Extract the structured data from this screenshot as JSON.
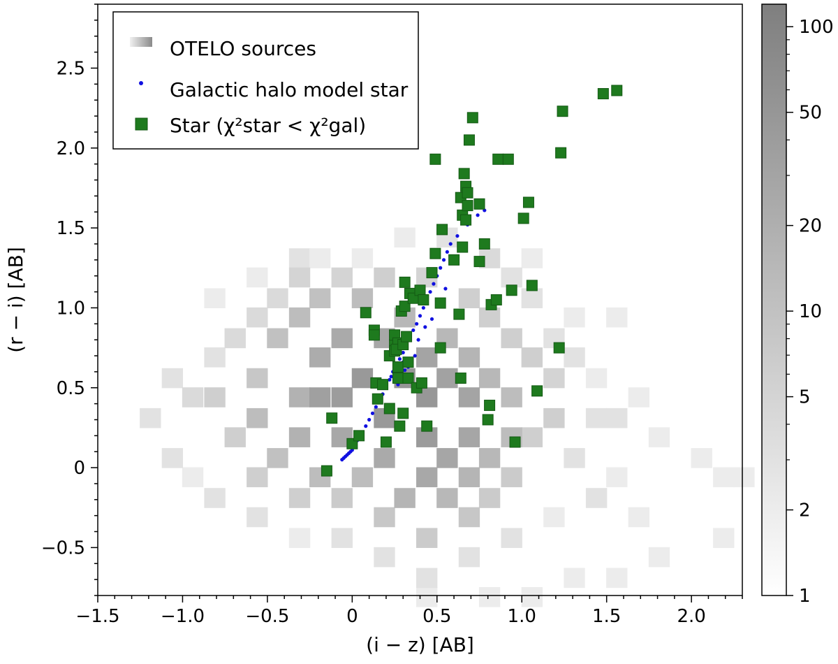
{
  "chart_data": {
    "type": "heatmap",
    "xlabel": "(i − z) [AB]",
    "ylabel": "(r − i) [AB]",
    "xlim": [
      -1.5,
      2.3
    ],
    "ylim": [
      -0.8,
      2.9
    ],
    "xticks": [
      -1.5,
      -1.0,
      -0.5,
      0,
      0.5,
      1.0,
      1.5,
      2.0
    ],
    "xtick_labels": [
      "−1.5",
      "−1.0",
      "−0.5",
      "0",
      "0.5",
      "1.0",
      "1.5",
      "2.0"
    ],
    "yticks": [
      -0.5,
      0,
      0.5,
      1.0,
      1.5,
      2.0,
      2.5
    ],
    "ytick_labels": [
      "−0.5",
      "0",
      "0.5",
      "1.0",
      "1.5",
      "2.0",
      "2.5"
    ],
    "legend": {
      "location": "upper-left",
      "entries": [
        {
          "key": "hist",
          "label": "OTELO sources"
        },
        {
          "key": "halo",
          "label": "Galactic halo model star"
        },
        {
          "key": "star",
          "label": "Star (χ²star < χ²gal)"
        }
      ]
    },
    "colorbar": {
      "scale": "log",
      "range": [
        1,
        120
      ],
      "ticks": [
        1,
        2,
        5,
        10,
        20,
        50,
        100
      ],
      "tick_labels": [
        "1",
        "2",
        "5",
        "10",
        "20",
        "50",
        "100"
      ],
      "color_low": "#ffffff",
      "color_high": "#7f7f7f"
    },
    "colors": {
      "halo": "#1010e0",
      "star": "#1e7a1e",
      "star_edge": "#145a14"
    },
    "histogram": {
      "bin_width_x": 0.125,
      "bin_height_y": 0.125,
      "cells": [
        [
          -1.44,
          0.69,
          1
        ],
        [
          -1.19,
          1.69,
          1
        ],
        [
          -1.19,
          0.56,
          1
        ],
        [
          -0.94,
          1.69,
          1
        ],
        [
          -0.69,
          1.44,
          1
        ],
        [
          -0.44,
          1.69,
          1
        ],
        [
          -0.19,
          1.44,
          1
        ],
        [
          -0.69,
          1.06,
          1
        ],
        [
          -0.94,
          0.81,
          1
        ],
        [
          -1.31,
          0.31,
          1
        ],
        [
          -1.44,
          0.31,
          1
        ],
        [
          -1.06,
          0.19,
          1
        ],
        [
          -1.31,
          0.06,
          1
        ],
        [
          -1.31,
          -0.06,
          1
        ],
        [
          -0.94,
          -0.06,
          2
        ],
        [
          -0.69,
          -0.19,
          1
        ],
        [
          -0.81,
          -0.44,
          1
        ],
        [
          -1.06,
          -0.44,
          1
        ],
        [
          -0.56,
          -0.56,
          1
        ],
        [
          -0.19,
          -0.69,
          1
        ],
        [
          -0.06,
          -0.81,
          1
        ],
        [
          1.31,
          1.19,
          1
        ],
        [
          1.56,
          1.19,
          1
        ],
        [
          1.69,
          0.94,
          1
        ],
        [
          1.81,
          1.31,
          1
        ],
        [
          1.94,
          0.94,
          1
        ],
        [
          1.94,
          0.69,
          1
        ],
        [
          2.19,
          0.69,
          1
        ],
        [
          2.06,
          0.06,
          2
        ],
        [
          2.19,
          -0.06,
          2
        ],
        [
          2.31,
          -0.06,
          2
        ],
        [
          1.94,
          -0.19,
          1
        ],
        [
          2.06,
          -0.31,
          1
        ],
        [
          2.19,
          -0.44,
          2
        ],
        [
          1.81,
          -0.56,
          2
        ],
        [
          2.19,
          -0.69,
          1
        ],
        [
          2.06,
          -0.81,
          1
        ],
        [
          0.44,
          2.56,
          1
        ],
        [
          0.81,
          2.44,
          1
        ],
        [
          1.31,
          2.31,
          1
        ],
        [
          0.44,
          2.19,
          1
        ],
        [
          0.94,
          2.06,
          1
        ],
        [
          0.56,
          1.94,
          1
        ],
        [
          1.06,
          1.94,
          1
        ],
        [
          1.19,
          1.56,
          1
        ],
        [
          0.81,
          1.56,
          1
        ],
        [
          0.19,
          1.56,
          1
        ],
        [
          0.44,
          1.69,
          1
        ],
        [
          1.06,
          1.31,
          2
        ],
        [
          1.31,
          0.94,
          2
        ],
        [
          1.56,
          0.94,
          2
        ],
        [
          1.44,
          0.56,
          2
        ],
        [
          1.69,
          0.44,
          2
        ],
        [
          1.81,
          0.19,
          2
        ],
        [
          1.56,
          -0.06,
          2
        ],
        [
          1.69,
          -0.31,
          2
        ],
        [
          1.31,
          -0.69,
          2
        ],
        [
          1.56,
          -0.69,
          2
        ],
        [
          1.06,
          -0.81,
          2
        ],
        [
          0.81,
          -0.81,
          2
        ],
        [
          0.44,
          -0.81,
          2
        ],
        [
          -0.56,
          1.19,
          2
        ],
        [
          -0.81,
          1.06,
          2
        ],
        [
          -0.31,
          1.31,
          3
        ],
        [
          -0.19,
          1.31,
          2
        ],
        [
          0.06,
          1.31,
          2
        ],
        [
          -0.06,
          1.56,
          1
        ],
        [
          0.31,
          1.44,
          2
        ],
        [
          0.56,
          1.44,
          3
        ],
        [
          0.81,
          1.31,
          4
        ],
        [
          0.94,
          1.19,
          3
        ],
        [
          1.06,
          1.06,
          3
        ],
        [
          1.19,
          0.81,
          3
        ],
        [
          1.31,
          0.69,
          3
        ],
        [
          1.44,
          0.31,
          3
        ],
        [
          1.56,
          0.31,
          3
        ],
        [
          1.31,
          0.06,
          3
        ],
        [
          1.44,
          -0.19,
          3
        ],
        [
          1.19,
          -0.31,
          2
        ],
        [
          0.94,
          -0.44,
          3
        ],
        [
          0.69,
          -0.56,
          3
        ],
        [
          0.44,
          -0.69,
          3
        ],
        [
          0.19,
          -0.56,
          3
        ],
        [
          -0.06,
          -0.44,
          3
        ],
        [
          -0.31,
          -0.44,
          2
        ],
        [
          -0.56,
          -0.31,
          3
        ],
        [
          -0.81,
          -0.19,
          3
        ],
        [
          -1.06,
          0.06,
          3
        ],
        [
          -1.19,
          0.31,
          3
        ],
        [
          -1.06,
          0.56,
          3
        ],
        [
          -0.94,
          0.44,
          4
        ],
        [
          -0.81,
          0.69,
          3
        ],
        [
          -0.69,
          0.81,
          4
        ],
        [
          -0.56,
          0.94,
          4
        ],
        [
          -0.44,
          1.06,
          4
        ],
        [
          -0.31,
          1.19,
          5
        ],
        [
          -0.06,
          1.19,
          5
        ],
        [
          0.19,
          1.19,
          6
        ],
        [
          0.44,
          1.19,
          5
        ],
        [
          0.69,
          1.06,
          6
        ],
        [
          0.81,
          0.94,
          6
        ],
        [
          0.94,
          0.81,
          6
        ],
        [
          1.06,
          0.69,
          6
        ],
        [
          1.19,
          0.56,
          5
        ],
        [
          1.19,
          0.31,
          6
        ],
        [
          1.06,
          0.19,
          6
        ],
        [
          0.94,
          -0.06,
          7
        ],
        [
          0.81,
          -0.19,
          7
        ],
        [
          0.69,
          -0.31,
          8
        ],
        [
          0.44,
          -0.44,
          7
        ],
        [
          0.19,
          -0.31,
          8
        ],
        [
          -0.06,
          -0.19,
          7
        ],
        [
          -0.31,
          -0.19,
          6
        ],
        [
          -0.56,
          -0.06,
          6
        ],
        [
          -0.69,
          0.19,
          6
        ],
        [
          -0.81,
          0.44,
          6
        ],
        [
          -0.56,
          0.56,
          8
        ],
        [
          -0.44,
          0.81,
          10
        ],
        [
          -0.31,
          0.94,
          12
        ],
        [
          -0.19,
          1.06,
          10
        ],
        [
          0.06,
          1.06,
          12
        ],
        [
          0.31,
          0.94,
          14
        ],
        [
          0.56,
          0.81,
          14
        ],
        [
          0.69,
          0.69,
          16
        ],
        [
          0.81,
          0.56,
          14
        ],
        [
          0.94,
          0.44,
          12
        ],
        [
          0.94,
          0.19,
          12
        ],
        [
          0.81,
          0.06,
          14
        ],
        [
          0.69,
          -0.06,
          16
        ],
        [
          0.56,
          -0.19,
          14
        ],
        [
          0.31,
          -0.19,
          16
        ],
        [
          0.06,
          -0.06,
          12
        ],
        [
          -0.19,
          -0.06,
          12
        ],
        [
          -0.44,
          0.06,
          10
        ],
        [
          -0.56,
          0.31,
          12
        ],
        [
          -0.31,
          0.44,
          18
        ],
        [
          -0.19,
          0.69,
          22
        ],
        [
          -0.06,
          0.81,
          24
        ],
        [
          0.19,
          0.81,
          26
        ],
        [
          0.44,
          0.69,
          30
        ],
        [
          0.56,
          0.56,
          32
        ],
        [
          0.69,
          0.44,
          30
        ],
        [
          0.69,
          0.19,
          28
        ],
        [
          0.56,
          0.06,
          28
        ],
        [
          0.44,
          -0.06,
          26
        ],
        [
          0.19,
          0.06,
          24
        ],
        [
          -0.06,
          0.19,
          26
        ],
        [
          -0.31,
          0.19,
          18
        ],
        [
          -0.19,
          0.44,
          35
        ],
        [
          0.06,
          0.56,
          45
        ],
        [
          0.31,
          0.56,
          50
        ],
        [
          0.44,
          0.44,
          48
        ],
        [
          0.44,
          0.19,
          42
        ],
        [
          0.19,
          0.31,
          45
        ],
        [
          -0.06,
          0.44,
          40
        ]
      ]
    },
    "halo_model_stars": [
      [
        -0.06,
        0.05
      ],
      [
        -0.05,
        0.06
      ],
      [
        -0.04,
        0.07
      ],
      [
        -0.03,
        0.08
      ],
      [
        -0.02,
        0.09
      ],
      [
        -0.01,
        0.1
      ],
      [
        0.0,
        0.11
      ],
      [
        0.01,
        0.13
      ],
      [
        0.02,
        0.15
      ],
      [
        0.03,
        0.17
      ],
      [
        0.04,
        0.19
      ],
      [
        0.06,
        0.22
      ],
      [
        0.08,
        0.26
      ],
      [
        0.1,
        0.3
      ],
      [
        0.12,
        0.34
      ],
      [
        0.14,
        0.38
      ],
      [
        0.16,
        0.42
      ],
      [
        0.18,
        0.46
      ],
      [
        0.2,
        0.5
      ],
      [
        0.22,
        0.55
      ],
      [
        0.24,
        0.6
      ],
      [
        0.26,
        0.64
      ],
      [
        0.28,
        0.68
      ],
      [
        0.3,
        0.72
      ],
      [
        0.32,
        0.77
      ],
      [
        0.34,
        0.82
      ],
      [
        0.36,
        0.86
      ],
      [
        0.38,
        0.9
      ],
      [
        0.4,
        0.95
      ],
      [
        0.42,
        1.0
      ],
      [
        0.44,
        1.05
      ],
      [
        0.46,
        1.1
      ],
      [
        0.48,
        1.15
      ],
      [
        0.5,
        1.2
      ],
      [
        0.52,
        1.25
      ],
      [
        0.54,
        1.3
      ],
      [
        0.56,
        1.35
      ],
      [
        0.58,
        1.4
      ],
      [
        0.62,
        1.45
      ],
      [
        0.68,
        1.52
      ],
      [
        0.74,
        1.58
      ],
      [
        0.78,
        1.61
      ],
      [
        0.29,
        0.58
      ],
      [
        0.31,
        0.61
      ],
      [
        0.33,
        0.63
      ],
      [
        0.35,
        0.65
      ],
      [
        0.37,
        0.7
      ],
      [
        0.33,
        0.54
      ],
      [
        0.35,
        0.56
      ],
      [
        0.27,
        0.52
      ],
      [
        0.3,
        0.66
      ],
      [
        0.25,
        0.62
      ],
      [
        0.39,
        0.8
      ],
      [
        0.43,
        0.88
      ],
      [
        0.47,
        0.93
      ],
      [
        0.51,
        1.03
      ],
      [
        0.55,
        1.12
      ],
      [
        0.23,
        0.57
      ]
    ],
    "stars": [
      [
        -0.15,
        -0.02
      ],
      [
        -0.12,
        0.31
      ],
      [
        0.0,
        0.15
      ],
      [
        0.04,
        0.2
      ],
      [
        0.08,
        0.97
      ],
      [
        0.13,
        0.86
      ],
      [
        0.13,
        0.83
      ],
      [
        0.15,
        0.43
      ],
      [
        0.14,
        0.53
      ],
      [
        0.18,
        0.52
      ],
      [
        0.2,
        0.16
      ],
      [
        0.22,
        0.37
      ],
      [
        0.22,
        0.7
      ],
      [
        0.25,
        0.77
      ],
      [
        0.25,
        0.83
      ],
      [
        0.27,
        0.78
      ],
      [
        0.27,
        0.63
      ],
      [
        0.27,
        0.56
      ],
      [
        0.25,
        0.73
      ],
      [
        0.26,
        0.74
      ],
      [
        0.28,
        0.26
      ],
      [
        0.3,
        0.34
      ],
      [
        0.29,
        0.98
      ],
      [
        0.3,
        0.77
      ],
      [
        0.31,
        1.01
      ],
      [
        0.31,
        1.16
      ],
      [
        0.32,
        0.82
      ],
      [
        0.33,
        0.56
      ],
      [
        0.33,
        0.66
      ],
      [
        0.34,
        1.09
      ],
      [
        0.36,
        1.06
      ],
      [
        0.38,
        0.5
      ],
      [
        0.4,
        1.11
      ],
      [
        0.41,
        0.53
      ],
      [
        0.42,
        1.05
      ],
      [
        0.44,
        0.26
      ],
      [
        0.47,
        1.22
      ],
      [
        0.49,
        1.34
      ],
      [
        0.49,
        1.93
      ],
      [
        0.52,
        0.75
      ],
      [
        0.52,
        1.03
      ],
      [
        0.53,
        1.49
      ],
      [
        0.6,
        1.3
      ],
      [
        0.63,
        0.96
      ],
      [
        0.64,
        0.56
      ],
      [
        0.64,
        1.69
      ],
      [
        0.65,
        1.58
      ],
      [
        0.65,
        1.38
      ],
      [
        0.66,
        1.84
      ],
      [
        0.67,
        1.76
      ],
      [
        0.67,
        1.55
      ],
      [
        0.68,
        1.72
      ],
      [
        0.68,
        1.64
      ],
      [
        0.69,
        2.05
      ],
      [
        0.71,
        2.19
      ],
      [
        0.75,
        1.29
      ],
      [
        0.75,
        1.65
      ],
      [
        0.78,
        1.4
      ],
      [
        0.8,
        0.3
      ],
      [
        0.81,
        0.39
      ],
      [
        0.82,
        1.02
      ],
      [
        0.85,
        1.05
      ],
      [
        0.86,
        1.93
      ],
      [
        0.92,
        1.93
      ],
      [
        0.94,
        1.11
      ],
      [
        0.96,
        0.16
      ],
      [
        1.01,
        1.56
      ],
      [
        1.04,
        1.66
      ],
      [
        1.06,
        1.14
      ],
      [
        1.09,
        0.48
      ],
      [
        1.22,
        0.75
      ],
      [
        1.23,
        1.97
      ],
      [
        1.24,
        2.23
      ],
      [
        1.48,
        2.34
      ],
      [
        1.56,
        2.36
      ]
    ]
  }
}
